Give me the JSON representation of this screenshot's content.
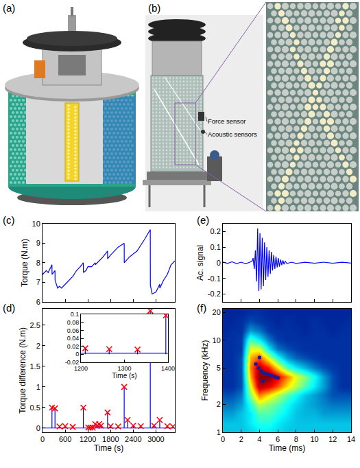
{
  "figure": {
    "panels": [
      {
        "panel": "(a)"
      },
      {
        "panel": "(b)",
        "labels": [
          "Force sensor",
          "Acoustic sensors"
        ]
      }
    ]
  },
  "chart_data": [
    {
      "panel": "(c)",
      "type": "line",
      "y_label": "Torque (N.m)",
      "xlim": [
        0,
        3500
      ],
      "xticks": [
        0,
        600,
        1200,
        1800,
        2400,
        3000
      ],
      "ylim": [
        6,
        10
      ],
      "yticks": [
        6,
        7,
        8,
        9,
        10
      ],
      "tick_labels": "y",
      "series": [
        {
          "color": "#0000ff",
          "x": [
            0,
            100,
            150,
            250,
            252,
            300,
            330,
            332,
            400,
            450,
            500,
            600,
            700,
            800,
            900,
            1000,
            1080,
            1082,
            1150,
            1200,
            1300,
            1395,
            1397,
            1500,
            1600,
            1720,
            1722,
            1800,
            1900,
            2000,
            2160,
            2162,
            2300,
            2500,
            2600,
            2700,
            2850,
            2852,
            2900,
            3000,
            3100,
            3102,
            3200,
            3300,
            3400,
            3500
          ],
          "values": [
            7.4,
            7.6,
            7.5,
            7.9,
            7.4,
            7.5,
            7.6,
            7.1,
            6.7,
            6.8,
            6.7,
            6.9,
            7.1,
            7.3,
            7.6,
            7.8,
            8.0,
            7.5,
            7.6,
            7.8,
            7.8,
            8.0,
            7.9,
            8.1,
            8.3,
            8.6,
            8.2,
            8.4,
            8.6,
            8.8,
            9.0,
            8.0,
            8.3,
            8.6,
            8.9,
            9.2,
            9.7,
            6.85,
            6.4,
            6.5,
            6.9,
            6.7,
            7.1,
            7.4,
            7.9,
            8.1
          ]
        }
      ]
    },
    {
      "panel": "(d)",
      "type": "line",
      "x_label": "Time (s)",
      "y_label": "Torque difference (N.m)",
      "xlim": [
        0,
        3500
      ],
      "xticks": [
        0,
        600,
        1200,
        1800,
        2400,
        3000
      ],
      "ylim": [
        -0.1,
        2.9
      ],
      "yticks": [
        0,
        0.5,
        1,
        1.5,
        2,
        2.5
      ],
      "series": [
        {
          "type": "line",
          "color": "#0000ff",
          "x": [
            0,
            3500
          ],
          "values": [
            0.003,
            0.003
          ]
        },
        {
          "type": "stem",
          "color": "#0000ff",
          "x": [
            250,
            330,
            450,
            600,
            800,
            1080,
            1210,
            1265,
            1330,
            1395,
            1450,
            1500,
            1550,
            1720,
            1800,
            2000,
            2160,
            2250,
            2400,
            2600,
            2850,
            2950,
            3100,
            3300,
            3450
          ],
          "values": [
            0.5,
            0.48,
            0.04,
            0.05,
            0.03,
            0.5,
            0.015,
            0.013,
            0.012,
            0.097,
            0.06,
            0.1,
            0.06,
            0.38,
            0.05,
            0.04,
            1.0,
            0.2,
            0.06,
            0.05,
            2.85,
            0.06,
            0.2,
            0.05,
            0.04
          ]
        },
        {
          "type": "scatter",
          "marker": "x",
          "color": "#ff0000",
          "x": [
            250,
            330,
            450,
            600,
            800,
            1080,
            1210,
            1265,
            1330,
            1395,
            1450,
            1500,
            1550,
            1720,
            1800,
            2000,
            2160,
            2250,
            2400,
            2600,
            2850,
            2950,
            3100,
            3300,
            3450
          ],
          "values": [
            0.5,
            0.48,
            0.04,
            0.05,
            0.03,
            0.5,
            0.015,
            0.013,
            0.012,
            0.097,
            0.06,
            0.1,
            0.06,
            0.38,
            0.05,
            0.04,
            1.0,
            0.2,
            0.06,
            0.05,
            2.85,
            0.06,
            0.2,
            0.05,
            0.04
          ]
        }
      ],
      "inset": {
        "x_label": "Time (s)",
        "xlim": [
          1200,
          1400
        ],
        "xticks": [
          1200,
          1300,
          1400
        ],
        "ylim": [
          -0.02,
          0.1
        ],
        "yticks": [
          -0.02,
          0,
          0.02,
          0.04,
          0.06,
          0.08,
          0.1
        ]
      }
    },
    {
      "panel": "(e)",
      "type": "line",
      "y_label": "Ac. signal",
      "xlim": [
        0,
        14
      ],
      "xticks": [
        0,
        2,
        4,
        6,
        8,
        10,
        12,
        14
      ],
      "ylim": [
        -0.25,
        0.25
      ],
      "yticks": [
        -0.2,
        -0.1,
        0,
        0.1,
        0.2
      ],
      "tick_labels": "y",
      "series": [
        {
          "color": "#0000ff",
          "x": [
            0,
            0.5,
            1,
            1.5,
            2,
            2.5,
            3,
            3.2,
            3.3,
            3.43,
            3.55,
            3.68,
            3.8,
            3.93,
            4.05,
            4.18,
            4.3,
            4.43,
            4.55,
            4.68,
            4.8,
            4.93,
            5.05,
            5.18,
            5.3,
            5.43,
            5.55,
            5.68,
            5.8,
            5.93,
            6.05,
            6.18,
            6.3,
            6.43,
            6.55,
            6.68,
            6.8,
            7,
            7.5,
            8,
            9,
            10,
            11,
            12,
            13,
            14
          ],
          "values": [
            0.005,
            -0.004,
            0.006,
            -0.005,
            0.004,
            -0.006,
            0.005,
            0.01,
            0.03,
            -0.04,
            0.08,
            -0.12,
            0.22,
            -0.18,
            0.19,
            -0.17,
            0.16,
            -0.15,
            0.13,
            -0.11,
            0.1,
            -0.09,
            0.08,
            -0.07,
            0.07,
            -0.05,
            0.05,
            -0.04,
            0.04,
            -0.03,
            0.03,
            -0.025,
            0.02,
            -0.015,
            0.015,
            -0.01,
            0.01,
            -0.005,
            0.004,
            -0.004,
            0.003,
            -0.003,
            0.004,
            -0.003,
            0.003,
            -0.002
          ]
        }
      ]
    },
    {
      "panel": "(f)",
      "type": "heatmap",
      "log": "y",
      "x_label": "Time (ms)",
      "y_label": "Frequency (kHz)",
      "xlim": [
        0,
        14
      ],
      "xticks": [
        0,
        2,
        4,
        6,
        8,
        10,
        12,
        14
      ],
      "ylim": [
        1,
        22
      ],
      "yticks": [
        1,
        2,
        5,
        10,
        20
      ],
      "color": "Jet",
      "cells": {
        "x": [
          0,
          1,
          2,
          3,
          4,
          5,
          6,
          7,
          8,
          9,
          10,
          11,
          12,
          13,
          14
        ],
        "y": [
          1,
          1.26,
          1.59,
          2,
          2.52,
          3.17,
          4,
          5.04,
          6.35,
          8,
          10.1,
          12.7,
          16,
          20
        ],
        "zlim": [
          0,
          1
        ],
        "values": [
          [
            0.3,
            0.3,
            0.3,
            0.32,
            0.35,
            0.35,
            0.33,
            0.3,
            0.3,
            0.3,
            0.3,
            0.3,
            0.3,
            0.3,
            0.3
          ],
          [
            0.3,
            0.3,
            0.3,
            0.35,
            0.4,
            0.4,
            0.35,
            0.32,
            0.3,
            0.3,
            0.3,
            0.3,
            0.3,
            0.3,
            0.3
          ],
          [
            0.25,
            0.25,
            0.3,
            0.35,
            0.45,
            0.45,
            0.4,
            0.35,
            0.3,
            0.28,
            0.28,
            0.25,
            0.25,
            0.25,
            0.25
          ],
          [
            0.2,
            0.2,
            0.25,
            0.4,
            0.55,
            0.5,
            0.45,
            0.38,
            0.32,
            0.28,
            0.25,
            0.22,
            0.2,
            0.2,
            0.2
          ],
          [
            0.15,
            0.15,
            0.2,
            0.5,
            0.75,
            0.65,
            0.55,
            0.45,
            0.38,
            0.3,
            0.25,
            0.2,
            0.15,
            0.15,
            0.15
          ],
          [
            0.1,
            0.1,
            0.15,
            0.6,
            0.95,
            0.9,
            0.8,
            0.65,
            0.55,
            0.45,
            0.35,
            0.25,
            0.15,
            0.1,
            0.1
          ],
          [
            0.1,
            0.1,
            0.15,
            0.7,
            1.0,
            1.0,
            0.9,
            0.75,
            0.6,
            0.5,
            0.38,
            0.25,
            0.15,
            0.1,
            0.1
          ],
          [
            0.1,
            0.1,
            0.15,
            0.75,
            0.95,
            0.85,
            0.65,
            0.45,
            0.35,
            0.28,
            0.2,
            0.15,
            0.12,
            0.1,
            0.1
          ],
          [
            0.1,
            0.1,
            0.15,
            0.7,
            0.8,
            0.6,
            0.4,
            0.25,
            0.18,
            0.15,
            0.12,
            0.1,
            0.1,
            0.1,
            0.1
          ],
          [
            0.1,
            0.1,
            0.12,
            0.6,
            0.6,
            0.35,
            0.2,
            0.15,
            0.12,
            0.1,
            0.1,
            0.1,
            0.1,
            0.1,
            0.1
          ],
          [
            0.1,
            0.1,
            0.12,
            0.45,
            0.35,
            0.2,
            0.12,
            0.1,
            0.1,
            0.1,
            0.1,
            0.1,
            0.1,
            0.1,
            0.1
          ],
          [
            0.08,
            0.1,
            0.1,
            0.25,
            0.2,
            0.12,
            0.1,
            0.1,
            0.1,
            0.08,
            0.1,
            0.1,
            0.08,
            0.1,
            0.1
          ],
          [
            0.08,
            0.08,
            0.1,
            0.15,
            0.12,
            0.1,
            0.08,
            0.1,
            0.08,
            0.08,
            0.1,
            0.08,
            0.08,
            0.08,
            0.1
          ],
          [
            0.08,
            0.08,
            0.08,
            0.1,
            0.1,
            0.08,
            0.08,
            0.08,
            0.08,
            0.08,
            0.08,
            0.08,
            0.08,
            0.08,
            0.08
          ]
        ]
      },
      "series": [
        {
          "type": "scatter",
          "marker": "circle",
          "color": "#1a1a99",
          "x": [
            3.6,
            3.9,
            4.2,
            4.5,
            4.8,
            5.1,
            5.4,
            5.7,
            6.0,
            4.0,
            4.4
          ],
          "values": [
            5.5,
            5.0,
            4.6,
            4.4,
            4.3,
            4.2,
            4.1,
            4.0,
            3.9,
            6.5,
            3.6
          ]
        }
      ]
    }
  ]
}
